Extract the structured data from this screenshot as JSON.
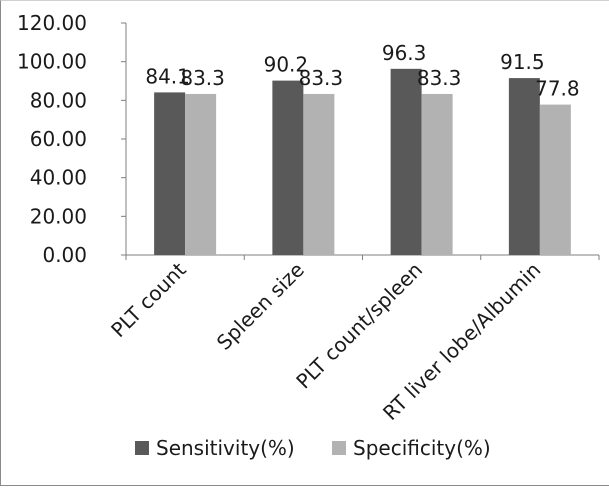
{
  "chart_data": {
    "type": "bar",
    "categories": [
      "PLT count",
      "Spleen size",
      "PLT count/spleen",
      "RT liver lobe/Albumin"
    ],
    "series": [
      {
        "name": "Sensitivity(%)",
        "values": [
          84.1,
          90.2,
          96.3,
          91.5
        ],
        "color": "#595959",
        "labels": [
          "84.1",
          "90.2",
          "96.3",
          "91.5"
        ]
      },
      {
        "name": "Specificity(%)",
        "values": [
          83.3,
          83.3,
          83.3,
          77.8
        ],
        "color": "#b2b2b2",
        "labels": [
          "83.3",
          "83.3",
          "83.3",
          "77.8"
        ]
      }
    ],
    "yticks": [
      "0.00",
      "20.00",
      "40.00",
      "60.00",
      "80.00",
      "100.00",
      "120.00"
    ],
    "ylim": [
      0,
      120
    ],
    "grid": false,
    "legend_position": "bottom",
    "title": "",
    "xlabel": "",
    "ylabel": ""
  }
}
